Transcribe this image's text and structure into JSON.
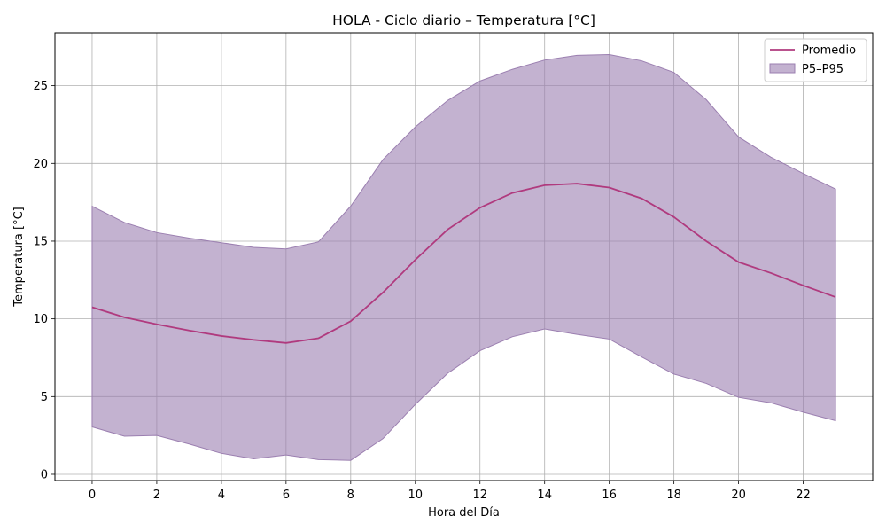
{
  "chart_data": {
    "type": "area",
    "title": "HOLA - Ciclo diario – Temperatura [°C]",
    "xlabel": "Hora del Día",
    "ylabel": "Temperatura [°C]",
    "xlim": [
      -1.15,
      24.15
    ],
    "ylim": [
      -0.4,
      28.4
    ],
    "xticks": [
      0,
      2,
      4,
      6,
      8,
      10,
      12,
      14,
      16,
      18,
      20,
      22
    ],
    "yticks": [
      0,
      5,
      10,
      15,
      20,
      25
    ],
    "grid": true,
    "legend_position": "top-right",
    "x": [
      0,
      1,
      2,
      3,
      4,
      5,
      6,
      7,
      8,
      9,
      10,
      11,
      12,
      13,
      14,
      15,
      16,
      17,
      18,
      19,
      20,
      21,
      22,
      23
    ],
    "series": [
      {
        "name": "Promedio",
        "type": "line",
        "color": "#b03a7e",
        "values": [
          10.75,
          10.1,
          9.65,
          9.25,
          8.9,
          8.65,
          8.45,
          8.75,
          9.85,
          11.7,
          13.8,
          15.75,
          17.15,
          18.1,
          18.6,
          18.7,
          18.45,
          17.75,
          16.55,
          15.0,
          13.65,
          12.95,
          12.15,
          11.4
        ]
      },
      {
        "name": "P5–P95",
        "type": "band",
        "color": "#9b7fb0",
        "lower": [
          3.05,
          2.45,
          2.5,
          1.95,
          1.35,
          1.0,
          1.25,
          0.95,
          0.9,
          2.3,
          4.5,
          6.5,
          7.95,
          8.85,
          9.35,
          9.0,
          8.7,
          7.55,
          6.45,
          5.85,
          4.95,
          4.6,
          4.0,
          3.45
        ],
        "upper": [
          17.25,
          16.2,
          15.55,
          15.2,
          14.9,
          14.6,
          14.5,
          14.95,
          17.25,
          20.25,
          22.35,
          24.05,
          25.3,
          26.05,
          26.65,
          26.95,
          27.0,
          26.6,
          25.85,
          24.1,
          21.7,
          20.4,
          19.35,
          18.35
        ]
      }
    ]
  }
}
